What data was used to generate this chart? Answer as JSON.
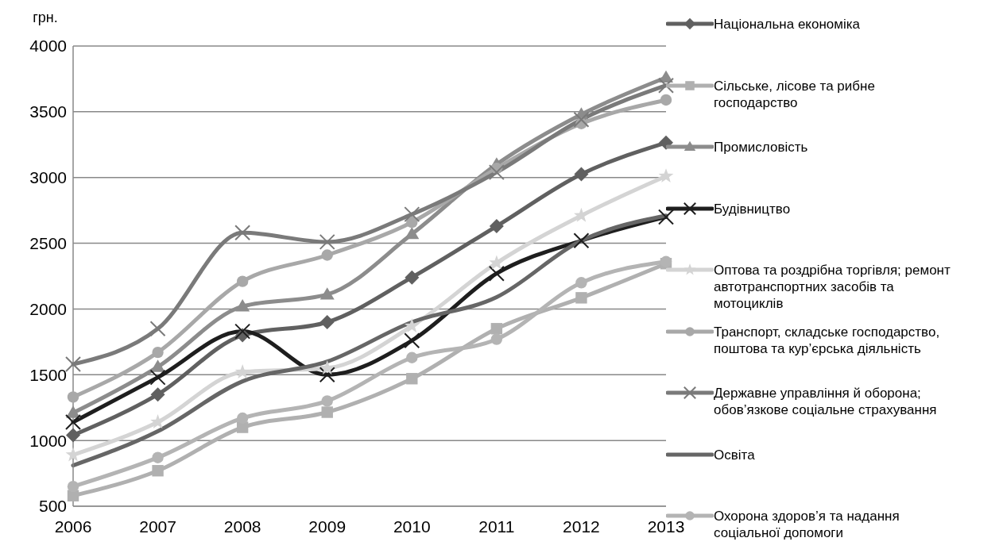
{
  "chart_data": {
    "type": "line",
    "ylabel": "грн.",
    "categories": [
      "2006",
      "2007",
      "2008",
      "2009",
      "2010",
      "2011",
      "2012",
      "2013"
    ],
    "series": [
      {
        "name": "Національна економіка",
        "color": "#606060",
        "marker": "diamond",
        "values": [
          1040,
          1350,
          1800,
          1900,
          2240,
          2630,
          3025,
          3265
        ]
      },
      {
        "name": "Сільське, лісове та рибне господарство",
        "color": "#b0b0b0",
        "marker": "square",
        "values": [
          580,
          770,
          1100,
          1215,
          1470,
          1850,
          2085,
          2345
        ]
      },
      {
        "name": "Промисловість",
        "color": "#8c8c8c",
        "marker": "triangle",
        "values": [
          1210,
          1560,
          2020,
          2110,
          2570,
          3100,
          3480,
          3760
        ]
      },
      {
        "name": "Будівництво",
        "color": "#1e1e1e",
        "marker": "cross",
        "values": [
          1140,
          1480,
          1830,
          1500,
          1760,
          2270,
          2520,
          2700
        ]
      },
      {
        "name": "Оптова та роздрібна торгівля; ремонт автотранспортних засобів та мотоциклів",
        "color": "#d4d4d4",
        "marker": "star",
        "values": [
          890,
          1140,
          1520,
          1550,
          1870,
          2350,
          2710,
          3010
        ]
      },
      {
        "name": "Транспорт, складське господарство, поштова та кур’єрська діяльність",
        "color": "#a8a8a8",
        "marker": "circle",
        "values": [
          1330,
          1670,
          2210,
          2410,
          2660,
          3070,
          3410,
          3590
        ]
      },
      {
        "name": "Державне управління й оборона; обов’язкове соціальне страхування",
        "color": "#7a7a7a",
        "marker": "cross",
        "values": [
          1580,
          1850,
          2580,
          2510,
          2720,
          3040,
          3440,
          3700
        ]
      },
      {
        "name": "Освіта",
        "color": "#666666",
        "marker": "none",
        "values": [
          810,
          1070,
          1450,
          1600,
          1900,
          2090,
          2520,
          2710
        ]
      },
      {
        "name": "Охорона здоров’я та надання соціальної допомоги",
        "color": "#b4b4b4",
        "marker": "circle",
        "values": [
          650,
          870,
          1170,
          1300,
          1630,
          1770,
          2200,
          2360
        ]
      }
    ],
    "ylim": [
      500,
      4000
    ],
    "yticks": [
      500,
      1000,
      1500,
      2000,
      2500,
      3000,
      3500,
      4000
    ],
    "grid": "y",
    "legend": "right"
  }
}
